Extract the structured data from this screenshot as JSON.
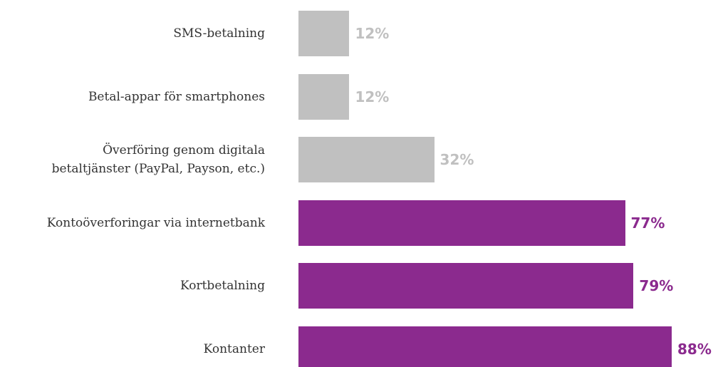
{
  "chart_data": {
    "type": "barh",
    "categories": [
      "SMS-betalning",
      "Betal-appar för smartphones",
      "Överföring genom digitala\nbetaltjänster (PayPal, Payson, etc.)",
      "Kontoöverforingar via internetbank",
      "Kortbetalning",
      "Kontanter"
    ],
    "values": [
      12,
      12,
      32,
      77,
      79,
      88
    ],
    "value_labels": [
      "12%",
      "12%",
      "32%",
      "77%",
      "79%",
      "88%"
    ],
    "colors": [
      "#c0c0c0",
      "#c0c0c0",
      "#c0c0c0",
      "#8b2a8e",
      "#8b2a8e",
      "#8b2a8e"
    ]
  }
}
